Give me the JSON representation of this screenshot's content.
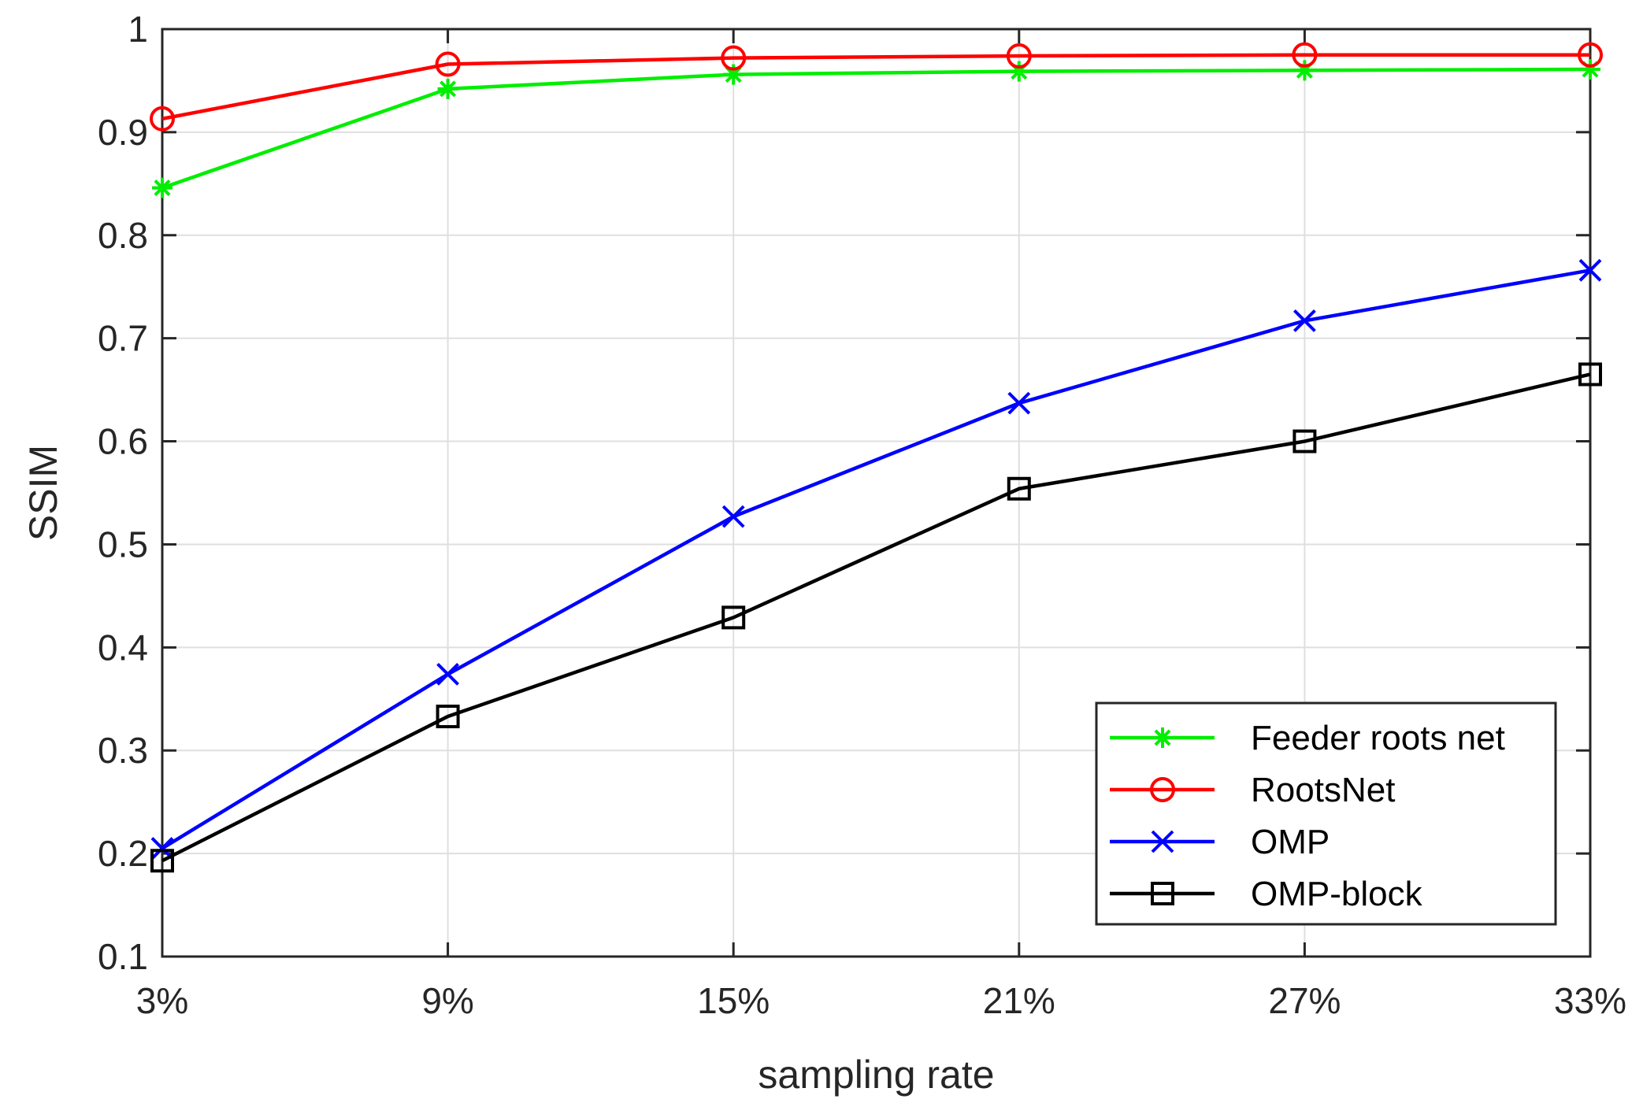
{
  "chart_data": {
    "type": "line",
    "title": "",
    "xlabel": "sampling rate",
    "ylabel": "SSIM",
    "categories": [
      "3%",
      "9%",
      "15%",
      "21%",
      "27%",
      "33%"
    ],
    "ylim": [
      0.1,
      1
    ],
    "yticks": [
      "0.1",
      "0.2",
      "0.3",
      "0.4",
      "0.5",
      "0.6",
      "0.7",
      "0.8",
      "0.9",
      "1"
    ],
    "grid": true,
    "legend_position": "bottom-right",
    "series": [
      {
        "name": "Feeder roots net",
        "color": "#00ee00",
        "marker": "asterisk",
        "values": [
          0.846,
          0.942,
          0.956,
          0.959,
          0.96,
          0.961
        ]
      },
      {
        "name": "RootsNet",
        "color": "#ff0000",
        "marker": "circle",
        "values": [
          0.913,
          0.966,
          0.972,
          0.974,
          0.975,
          0.975
        ]
      },
      {
        "name": "OMP",
        "color": "#0000ff",
        "marker": "x",
        "values": [
          0.205,
          0.374,
          0.527,
          0.637,
          0.717,
          0.766
        ]
      },
      {
        "name": "OMP-block",
        "color": "#000000",
        "marker": "square",
        "values": [
          0.193,
          0.333,
          0.429,
          0.554,
          0.6,
          0.665
        ]
      }
    ]
  }
}
